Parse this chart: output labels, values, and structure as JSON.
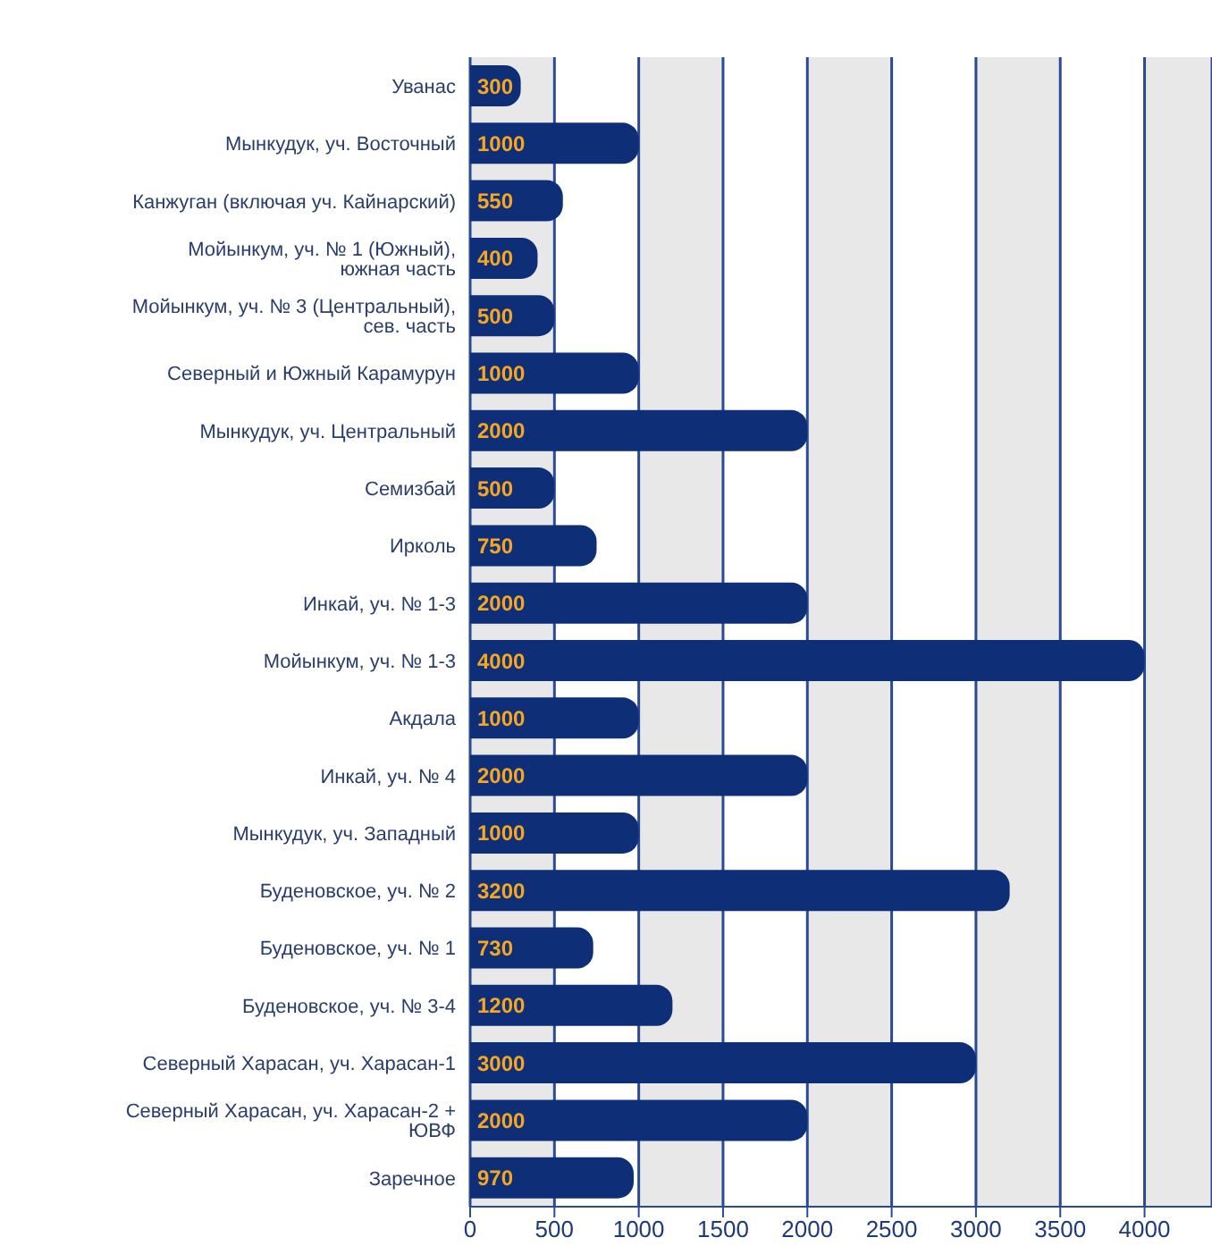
{
  "chart_data": {
    "type": "bar",
    "orientation": "horizontal",
    "categories": [
      "Уванас",
      "Мынкудук, уч. Восточный",
      "Канжуган (включая уч. Кайнарский)",
      "Мойынкум, уч. № 1 (Южный), южная часть",
      "Мойынкум, уч. № 3 (Центральный), сев. часть",
      "Северный и Южный Карамурун",
      "Мынкудук, уч. Центральный",
      "Семизбай",
      "Ирколь",
      "Инкай, уч. № 1-3",
      "Мойынкум, уч. № 1-3",
      "Акдала",
      "Инкай, уч. № 4",
      "Мынкудук, уч. Западный",
      "Буденовское, уч. № 2",
      "Буденовское, уч. № 1",
      "Буденовское, уч. № 3-4",
      "Северный Харасан, уч. Харасан-1",
      "Северный Харасан, уч. Харасан-2 + ЮВФ",
      "Заречное"
    ],
    "values": [
      300,
      1000,
      550,
      400,
      500,
      1000,
      2000,
      500,
      750,
      2000,
      4000,
      1000,
      2000,
      1000,
      3200,
      730,
      1200,
      3000,
      2000,
      970
    ],
    "color": "#0e2f78",
    "data_labels": true,
    "xlim": [
      0,
      4400
    ],
    "xticks": [
      0,
      500,
      1000,
      1500,
      2000,
      2500,
      3000,
      3500,
      4000
    ],
    "grid": "x"
  }
}
